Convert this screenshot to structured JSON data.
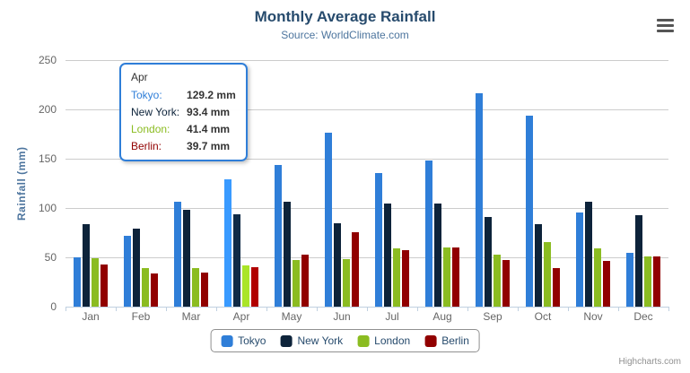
{
  "chart_data": {
    "type": "bar",
    "title": "Monthly Average Rainfall",
    "subtitle": "Source: WorldClimate.com",
    "categories": [
      "Jan",
      "Feb",
      "Mar",
      "Apr",
      "May",
      "Jun",
      "Jul",
      "Aug",
      "Sep",
      "Oct",
      "Nov",
      "Dec"
    ],
    "series": [
      {
        "name": "Tokyo",
        "color": "#2f7ed8",
        "values": [
          49.9,
          71.5,
          106.4,
          129.2,
          144.0,
          176.0,
          135.6,
          148.5,
          216.4,
          194.1,
          95.6,
          54.4
        ]
      },
      {
        "name": "New York",
        "color": "#0d233a",
        "values": [
          83.6,
          78.8,
          98.5,
          93.4,
          106.0,
          84.5,
          105.0,
          104.3,
          91.2,
          83.5,
          106.6,
          92.3
        ]
      },
      {
        "name": "London",
        "color": "#8bbc21",
        "values": [
          48.9,
          38.8,
          39.3,
          41.4,
          47.0,
          48.3,
          59.0,
          59.6,
          52.4,
          65.2,
          59.3,
          51.2
        ]
      },
      {
        "name": "Berlin",
        "color": "#910000",
        "values": [
          42.4,
          33.2,
          34.5,
          39.7,
          52.6,
          75.5,
          57.4,
          60.4,
          47.6,
          39.1,
          46.8,
          51.1
        ]
      }
    ],
    "xlabel": "",
    "ylabel": "Rainfall (mm)",
    "ylim": [
      0,
      250
    ],
    "yticks": [
      0,
      50,
      100,
      150,
      200,
      250
    ],
    "grid": true,
    "legend_position": "bottom"
  },
  "tooltip": {
    "category": "Apr",
    "border_color": "#2f7ed8",
    "rows": [
      {
        "label": "Tokyo:",
        "value": "129.2 mm"
      },
      {
        "label": "New York:",
        "value": "93.4 mm"
      },
      {
        "label": "London:",
        "value": "41.4 mm"
      },
      {
        "label": "Berlin:",
        "value": "39.7 mm"
      }
    ]
  },
  "credits": "Highcharts.com"
}
